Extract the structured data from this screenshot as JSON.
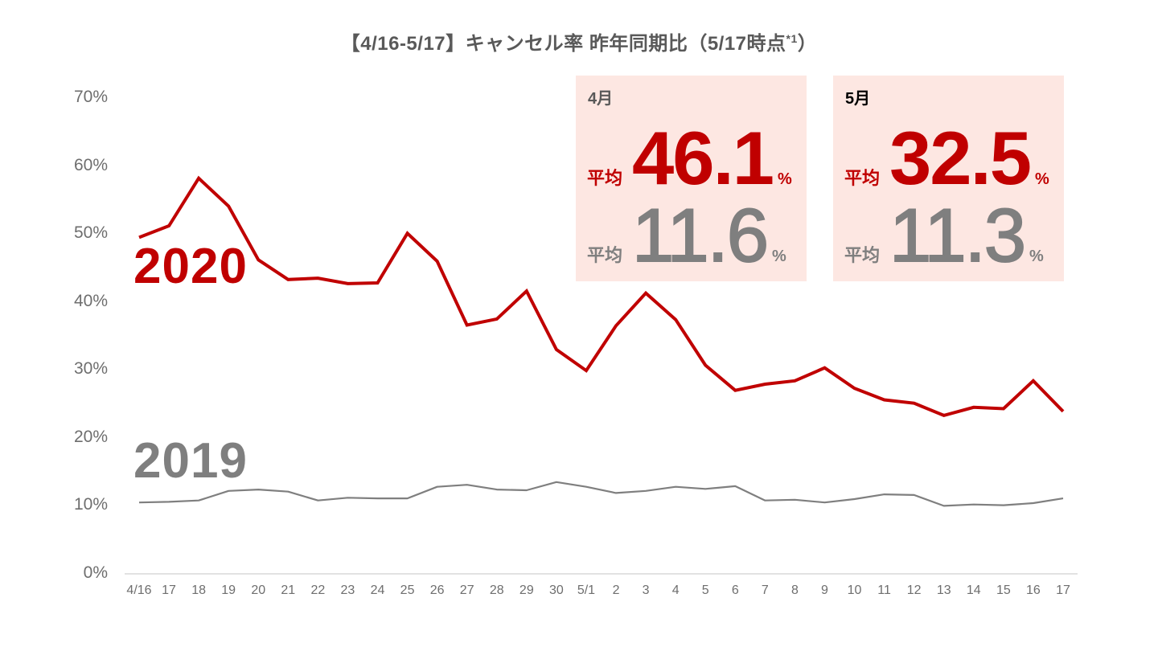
{
  "chart_data": {
    "type": "line",
    "title": "【4/16-5/17】キャンセル率 昨年同期比（5/17時点*1）",
    "xlabel": "",
    "ylabel": "",
    "ylim": [
      0,
      70
    ],
    "yticks": [
      "0%",
      "10%",
      "20%",
      "30%",
      "40%",
      "50%",
      "60%",
      "70%"
    ],
    "grid": false,
    "legend_position": "inline labels",
    "categories": [
      "4/16",
      "17",
      "18",
      "19",
      "20",
      "21",
      "22",
      "23",
      "24",
      "25",
      "26",
      "27",
      "28",
      "29",
      "30",
      "5/1",
      "2",
      "3",
      "4",
      "5",
      "6",
      "7",
      "8",
      "9",
      "10",
      "11",
      "12",
      "13",
      "14",
      "15",
      "16",
      "17"
    ],
    "series": [
      {
        "name": "2020",
        "color": "#c00000",
        "values": [
          49.5,
          51.2,
          58.2,
          54.1,
          46.2,
          43.3,
          43.5,
          42.7,
          42.8,
          50.1,
          46.0,
          36.6,
          37.5,
          41.6,
          33.0,
          29.9,
          36.5,
          41.3,
          37.4,
          30.7,
          27.0,
          27.9,
          28.4,
          30.3,
          27.3,
          25.6,
          25.1,
          23.3,
          24.5,
          24.3,
          28.4,
          23.9
        ]
      },
      {
        "name": "2019",
        "color": "#7f7f7f",
        "values": [
          10.5,
          10.6,
          10.8,
          12.2,
          12.4,
          12.1,
          10.8,
          11.2,
          11.1,
          11.1,
          12.8,
          13.1,
          12.4,
          12.3,
          13.5,
          12.8,
          11.9,
          12.2,
          12.8,
          12.5,
          12.9,
          10.8,
          10.9,
          10.5,
          11.0,
          11.7,
          11.6,
          10.0,
          10.2,
          10.1,
          10.4,
          11.1
        ]
      }
    ],
    "annotations": [
      {
        "month": "4月",
        "avg_label": "平均",
        "avg_2020": "46.1",
        "avg_2019": "11.6",
        "unit": "%"
      },
      {
        "month": "5月",
        "avg_label": "平均",
        "avg_2020": "32.5",
        "avg_2019": "11.3",
        "unit": "%"
      }
    ]
  },
  "header": {
    "title_main": "【4/16-5/17】キャンセル率 昨年同期比（5/17時点",
    "title_sup": "*1",
    "title_end": "）"
  },
  "labels": {
    "series_2020": "2020",
    "series_2019": "2019"
  },
  "boxes": {
    "april": {
      "month": "4月",
      "avg_label": "平均",
      "value_2020": "46.1",
      "value_2019": "11.6",
      "unit": "%"
    },
    "may": {
      "month": "5月",
      "avg_label": "平均",
      "value_2020": "32.5",
      "value_2019": "11.3",
      "unit": "%"
    }
  },
  "colors": {
    "red": "#c00000",
    "gray": "#7f7f7f",
    "box_bg": "#fde7e2",
    "axis": "#d9d9d9"
  }
}
